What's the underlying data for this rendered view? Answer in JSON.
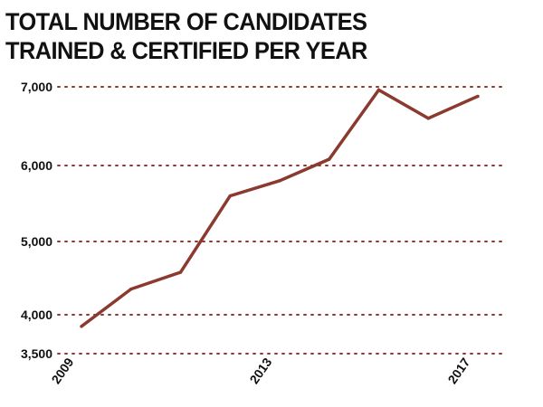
{
  "chart_data": {
    "type": "line",
    "title_lines": [
      "TOTAL NUMBER OF CANDIDATES",
      "TRAINED & CERTIFIED PER YEAR"
    ],
    "xlabel": "",
    "ylabel": "",
    "x": [
      2009,
      2010,
      2011,
      2012,
      2013,
      2014,
      2015,
      2016,
      2017
    ],
    "series": [
      {
        "values": [
          3850,
          4350,
          4580,
          5600,
          5800,
          6080,
          6960,
          6600,
          6880
        ]
      }
    ],
    "ylim": [
      3500,
      7000
    ],
    "xlim": [
      2009,
      2017
    ],
    "y_ticks": [
      {
        "value": 3500,
        "label": "3,500"
      },
      {
        "value": 4000,
        "label": "4,000"
      },
      {
        "value": 5000,
        "label": "5,000"
      },
      {
        "value": 6000,
        "label": "6,000"
      },
      {
        "value": 7000,
        "label": "7,000"
      }
    ],
    "x_ticks": [
      {
        "value": 2009,
        "label": "2009"
      },
      {
        "value": 2013,
        "label": "2013"
      },
      {
        "value": 2017,
        "label": "2017"
      }
    ],
    "grid": true,
    "grid_style": "dotted",
    "line_color": "#8b3a2f",
    "grid_color": "#8b3a2f"
  }
}
